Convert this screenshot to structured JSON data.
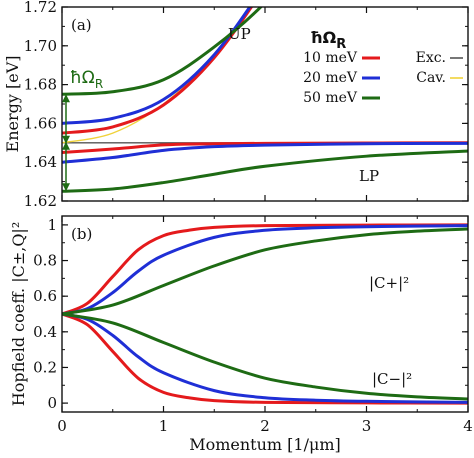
{
  "colors": {
    "red": "#e41a1c",
    "blue": "#1f2fd6",
    "green": "#1e6b14",
    "exciton": "#555555",
    "cavity": "#f0d23a"
  },
  "chart_data": [
    {
      "panel_label": "(a)",
      "type": "line",
      "xlim": [
        0,
        4
      ],
      "ylim": [
        1.62,
        1.72
      ],
      "xticks": [
        "0",
        "1",
        "2",
        "3",
        "4"
      ],
      "yticks": [
        "1.62",
        "1.64",
        "1.66",
        "1.68",
        "1.70",
        "1.72"
      ],
      "ylabel": "Energy [eV]",
      "params": {
        "E_exciton": 1.65,
        "E_cavity_0": 1.65,
        "cavity_curvature": 0.02
      },
      "legend_title": "ħΩR",
      "legend_title_main": "ħΩ",
      "legend_title_sub": "R",
      "legend_entries": [
        "10 meV",
        "20 meV",
        "50 meV",
        "Exc.",
        "Cav."
      ],
      "annotations": {
        "up": "UP",
        "lp": "LP",
        "rabi_main": "ħΩ",
        "rabi_sub": "R"
      },
      "series": [
        {
          "name": "10 meV",
          "rabi_meV": 10,
          "color": "#e41a1c",
          "UP": {
            "x": [
              0,
              0.5,
              1,
              1.5,
              2,
              2.4
            ],
            "y": [
              1.655,
              1.6582,
              1.6695,
              1.6939,
              1.7306,
              1.766
            ]
          },
          "LP": {
            "x": [
              0,
              0.5,
              1,
              1.5,
              2,
              3,
              4
            ],
            "y": [
              1.645,
              1.6468,
              1.6489,
              1.6495,
              1.6497,
              1.6499,
              1.65
            ]
          }
        },
        {
          "name": "20 meV",
          "rabi_meV": 20,
          "color": "#1f2fd6",
          "UP": {
            "x": [
              0,
              0.5,
              1,
              1.5,
              2,
              2.4
            ],
            "y": [
              1.66,
              1.6626,
              1.6723,
              1.6954,
              1.7313,
              1.7612
            ]
          },
          "LP": {
            "x": [
              0,
              0.5,
              1,
              1.5,
              2,
              3,
              4
            ],
            "y": [
              1.64,
              1.6424,
              1.6461,
              1.648,
              1.6488,
              1.6495,
              1.6497
            ]
          }
        },
        {
          "name": "50 meV",
          "rabi_meV": 50,
          "color": "#1e6b14",
          "UP": {
            "x": [
              0,
              0.5,
              1,
              1.5,
              2,
              2.3
            ],
            "y": [
              1.675,
              1.6763,
              1.6825,
              1.6994,
              1.7222,
              1.742
            ]
          },
          "LP": {
            "x": [
              0,
              0.5,
              1,
              1.5,
              2,
              3,
              4
            ],
            "y": [
              1.625,
              1.6262,
              1.6295,
              1.6338,
              1.6379,
              1.6431,
              1.6458
            ]
          }
        },
        {
          "name": "Exc.",
          "color": "#555555",
          "x": [
            0,
            4
          ],
          "y": [
            1.65,
            1.65
          ]
        },
        {
          "name": "Cav.",
          "color": "#f0d23a",
          "x": [
            0,
            0.5,
            1,
            1.5,
            2,
            2.4
          ],
          "y": [
            1.65,
            1.655,
            1.67,
            1.695,
            1.73,
            1.7652
          ]
        }
      ]
    },
    {
      "panel_label": "(b)",
      "type": "line",
      "xlim": [
        0,
        4
      ],
      "ylim": [
        -0.05,
        1.05
      ],
      "xticks": [
        "0",
        "1",
        "2",
        "3",
        "4"
      ],
      "yticks": [
        "0",
        "0.2",
        "0.4",
        "0.6",
        "0.8",
        "1"
      ],
      "xlabel": "Momentum [1/μm]",
      "ylabel": "Hopfield coeff. |C±,Q|²",
      "annotations": {
        "c_plus": "|C+|²",
        "c_minus": "|C−|²"
      },
      "series": [
        {
          "name": "10 meV",
          "color": "#e41a1c",
          "C_plus": {
            "x": [
              0,
              0.25,
              0.5,
              0.75,
              1,
              1.25,
              1.5,
              2,
              3,
              4
            ],
            "y": [
              0.5,
              0.56,
              0.71,
              0.86,
              0.94,
              0.97,
              0.986,
              0.996,
              0.999,
              1.0
            ]
          },
          "C_minus": {
            "x": [
              0,
              0.25,
              0.5,
              0.75,
              1,
              1.25,
              1.5,
              2,
              3,
              4
            ],
            "y": [
              0.5,
              0.44,
              0.29,
              0.14,
              0.06,
              0.03,
              0.014,
              0.004,
              0.001,
              0.0
            ]
          }
        },
        {
          "name": "20 meV",
          "color": "#1f2fd6",
          "C_plus": {
            "x": [
              0,
              0.25,
              0.5,
              0.75,
              1,
              1.5,
              2,
              2.5,
              3,
              4
            ],
            "y": [
              0.5,
              0.53,
              0.62,
              0.74,
              0.83,
              0.93,
              0.97,
              0.984,
              0.99,
              0.996
            ]
          },
          "C_minus": {
            "x": [
              0,
              0.25,
              0.5,
              0.75,
              1,
              1.5,
              2,
              2.5,
              3,
              4
            ],
            "y": [
              0.5,
              0.47,
              0.38,
              0.26,
              0.17,
              0.07,
              0.03,
              0.016,
              0.01,
              0.004
            ]
          }
        },
        {
          "name": "50 meV",
          "color": "#1e6b14",
          "C_plus": {
            "x": [
              0,
              0.5,
              1,
              1.5,
              2,
              2.5,
              3,
              3.5,
              4
            ],
            "y": [
              0.5,
              0.55,
              0.66,
              0.77,
              0.86,
              0.91,
              0.945,
              0.965,
              0.977
            ]
          },
          "C_minus": {
            "x": [
              0,
              0.5,
              1,
              1.5,
              2,
              2.5,
              3,
              3.5,
              4
            ],
            "y": [
              0.5,
              0.45,
              0.34,
              0.23,
              0.14,
              0.09,
              0.055,
              0.035,
              0.023
            ]
          }
        }
      ]
    }
  ]
}
